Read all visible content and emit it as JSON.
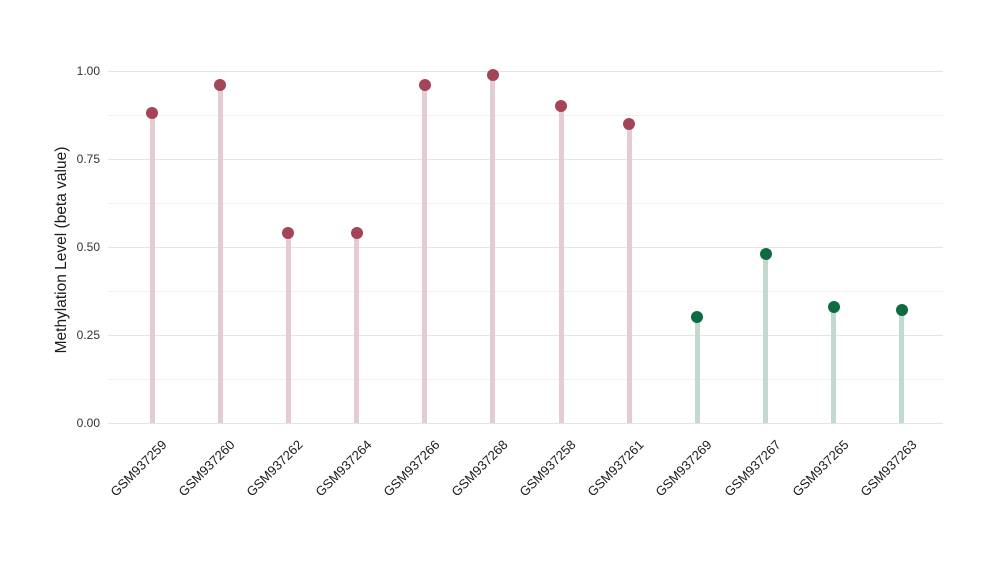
{
  "chart_data": {
    "type": "lollipop",
    "title": "",
    "xlabel": "",
    "ylabel": "Methylation Level (beta value)",
    "categories": [
      "GSM937259",
      "GSM937260",
      "GSM937262",
      "GSM937264",
      "GSM937266",
      "GSM937268",
      "GSM937258",
      "GSM937261",
      "GSM937269",
      "GSM937267",
      "GSM937265",
      "GSM937263"
    ],
    "values": [
      0.88,
      0.96,
      0.54,
      0.54,
      0.96,
      0.99,
      0.9,
      0.85,
      0.3,
      0.48,
      0.33,
      0.32
    ],
    "groups": [
      "maroon",
      "maroon",
      "maroon",
      "maroon",
      "maroon",
      "maroon",
      "maroon",
      "maroon",
      "green",
      "green",
      "green",
      "green"
    ],
    "palette": {
      "maroon": {
        "dot": "#a34556",
        "stem": "#e5cbd2"
      },
      "green": {
        "dot": "#0e6b41",
        "stem": "#c3d9cf"
      }
    },
    "ylim": [
      0,
      1.05
    ],
    "yticks": [
      0,
      0.25,
      0.5,
      0.75,
      1.0
    ],
    "ytick_labels": [
      "0.00",
      "0.25",
      "0.50",
      "0.75",
      "1.00"
    ],
    "minor_gridlines": [
      0.125,
      0.375,
      0.625,
      0.875
    ],
    "grid": "horizontal",
    "legend": "none",
    "x_label_rotation_deg": 45,
    "background": "#ffffff"
  }
}
